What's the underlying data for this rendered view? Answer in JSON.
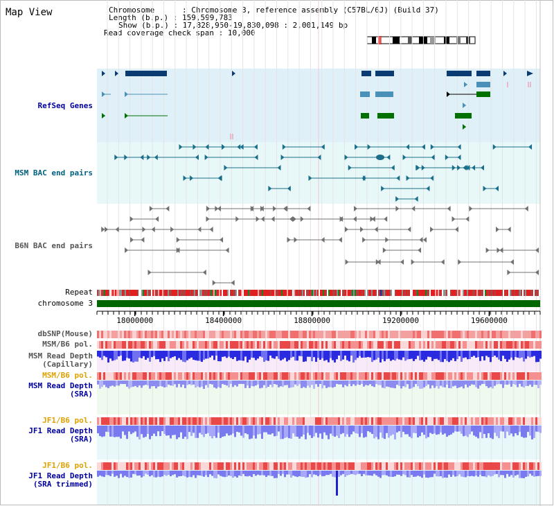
{
  "title": "Map View",
  "info": {
    "chromosome_label": "Chromosome",
    "chromosome_value": "Chromosome 3, reference assembly (C57BL/6J) (Build 37)",
    "length_label": "Length (b.p.)",
    "length_value": "159,599,783",
    "show_label": "Show (b.p.)",
    "show_value": "17,828,950-19,830,098 : 2,001,149 bp",
    "coverage_label": "Read coverage check span",
    "coverage_value": "10,000"
  },
  "tracks": {
    "refseq": "RefSeq Genes",
    "msm_bac": "MSM BAC end pairs",
    "b6n_bac": "B6N BAC end pairs",
    "repeat": "Repeat",
    "chromosome": "chromosome 3",
    "dbsnp": "dbSNP(Mouse)",
    "msm_b6_pol": "MSM/B6 pol.",
    "msm_depth_cap": "MSM Read Depth\n(Capillary)",
    "msm_b6_pol2": "MSM/B6 pol.",
    "msm_depth_sra": "MSM Read Depth\n(SRA)",
    "jf1_b6_pol": "JF1/B6 pol.",
    "jf1_depth_sra": "JF1 Read Depth\n(SRA)",
    "jf1_b6_pol2": "JF1/B6 pol.",
    "jf1_depth_trim": "JF1 Read Depth\n(SRA trimmed)"
  },
  "axis": {
    "ticks": [
      "18000000",
      "18400000",
      "18800000",
      "19200000",
      "19600000"
    ],
    "tick_values": [
      18000000,
      18400000,
      18800000,
      19200000,
      19600000
    ],
    "range": [
      17828950,
      19830098
    ]
  },
  "colors": {
    "refseq_bg": "#dff0f8",
    "msm_bg": "#e8f8f8",
    "refseq_gene": "#0b3b73",
    "refseq_nc": "#4a90b8",
    "refseq_green": "#007000",
    "msm_pair": "#1a6e8a",
    "b6n_pair": "#707070",
    "chromosome": "#006600",
    "depth_blue": "#2a2ae0",
    "depth_light": "#9a9af0",
    "pol_red": "#f06060",
    "orange_label": "#e0a000",
    "blue_label": "#0000a0",
    "teal_label": "#006080"
  }
}
